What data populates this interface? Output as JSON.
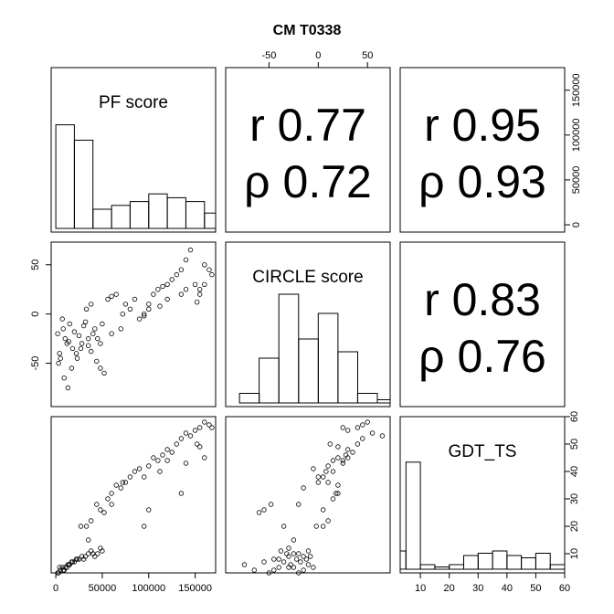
{
  "title": "CM T0338",
  "chart_data": {
    "type": "scatter",
    "variables": [
      "PF score",
      "CIRCLE score",
      "GDT_TS"
    ],
    "correlations": [
      {
        "pair": [
          "PF score",
          "CIRCLE score"
        ],
        "r": "r 0.77",
        "rho": "ρ 0.72"
      },
      {
        "pair": [
          "PF score",
          "GDT_TS"
        ],
        "r": "r 0.95",
        "rho": "ρ 0.93"
      },
      {
        "pair": [
          "CIRCLE score",
          "GDT_TS"
        ],
        "r": "r 0.83",
        "rho": "ρ 0.76"
      }
    ],
    "axes": {
      "pf": {
        "range": [
          -5000,
          172000
        ],
        "ticks": [
          0,
          50000,
          100000,
          150000
        ],
        "tick_labels": [
          "0",
          "50000",
          "100000",
          "150000"
        ]
      },
      "circle": {
        "range": [
          -94,
          73
        ],
        "ticks": [
          -50,
          0,
          50
        ],
        "tick_labels": [
          "-50",
          "0",
          "50"
        ]
      },
      "gdt": {
        "range": [
          3,
          60
        ],
        "ticks": [
          10,
          20,
          30,
          40,
          50,
          60
        ],
        "tick_labels": [
          "10",
          "20",
          "30",
          "40",
          "50",
          "60"
        ]
      }
    },
    "histograms": {
      "PF score": {
        "breaks": [
          0,
          20000,
          40000,
          60000,
          80000,
          100000,
          120000,
          140000,
          160000,
          180000
        ],
        "counts": [
          27,
          23,
          5,
          6,
          7,
          9,
          8,
          7,
          4
        ],
        "ymax": 30
      },
      "CIRCLE score": {
        "breaks": [
          -80,
          -60,
          -40,
          -20,
          0,
          20,
          40,
          60,
          80
        ],
        "counts": [
          3,
          14,
          34,
          20,
          28,
          16,
          3,
          1
        ],
        "ymax": 36
      },
      "GDT_TS": {
        "breaks": [
          0,
          5,
          10,
          15,
          20,
          25,
          30,
          35,
          40,
          45,
          50,
          55,
          60
        ],
        "counts": [
          8,
          47,
          2,
          1,
          2,
          6,
          7,
          8,
          6,
          5,
          7,
          2
        ],
        "ymax": 48
      }
    },
    "points": {
      "pf": [
        2000,
        8000,
        12000,
        5000,
        15000,
        10000,
        18000,
        22000,
        3000,
        7000,
        14000,
        20000,
        25000,
        28000,
        30000,
        32000,
        35000,
        38000,
        40000,
        42000,
        45000,
        48000,
        50000,
        4000,
        9000,
        13000,
        17000,
        23000,
        27000,
        33000,
        38000,
        44000,
        48000,
        52000,
        56000,
        60000,
        65000,
        70000,
        75000,
        80000,
        85000,
        90000,
        95000,
        100000,
        105000,
        110000,
        115000,
        120000,
        125000,
        130000,
        135000,
        140000,
        145000,
        150000,
        155000,
        160000,
        165000,
        168000,
        100000,
        112000,
        140000,
        152000,
        160000,
        135000,
        95000,
        120000,
        72000,
        60000,
        35000,
        155000
      ],
      "circle": [
        -20,
        -15,
        -30,
        -45,
        -10,
        -25,
        -35,
        -40,
        -50,
        -5,
        -28,
        -18,
        -22,
        -30,
        -12,
        -8,
        -32,
        -38,
        -20,
        -15,
        -25,
        -30,
        -10,
        -40,
        -65,
        -75,
        -55,
        -45,
        -35,
        5,
        10,
        -48,
        -55,
        -60,
        15,
        18,
        20,
        -15,
        10,
        5,
        15,
        -5,
        0,
        10,
        20,
        25,
        28,
        30,
        35,
        40,
        45,
        55,
        65,
        30,
        25,
        50,
        45,
        40,
        5,
        8,
        25,
        12,
        30,
        20,
        -2,
        15,
        0,
        -20,
        -25,
        20
      ],
      "gdt": [
        3,
        4,
        5,
        4,
        6,
        5,
        7,
        8,
        3,
        5,
        6,
        7,
        8,
        9,
        8,
        9,
        10,
        11,
        10,
        9,
        10,
        12,
        11,
        5,
        4,
        6,
        7,
        8,
        20,
        20,
        22,
        28,
        26,
        25,
        30,
        32,
        35,
        34,
        36,
        38,
        40,
        41,
        38,
        42,
        45,
        44,
        46,
        48,
        47,
        50,
        52,
        54,
        53,
        55,
        56,
        58,
        57,
        56,
        26,
        40,
        43,
        50,
        45,
        32,
        20,
        44,
        36,
        28,
        15,
        49
      ]
    }
  }
}
